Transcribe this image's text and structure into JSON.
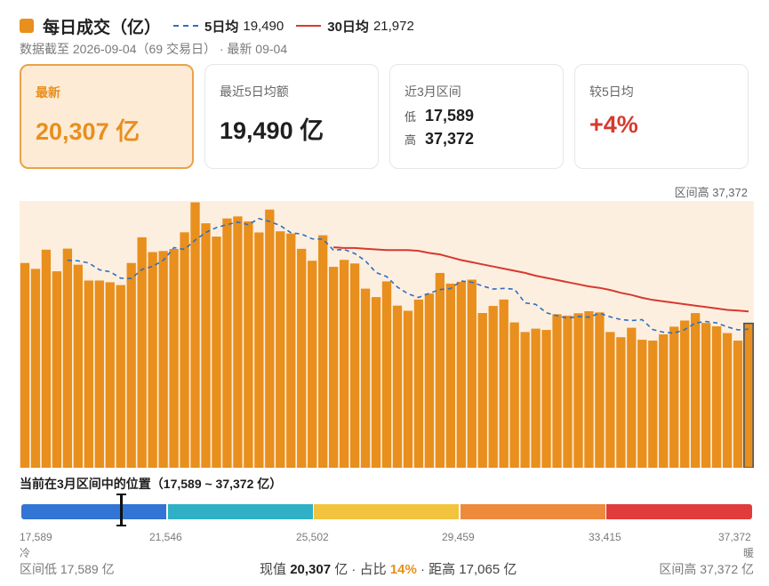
{
  "header": {
    "title": "每日成交（亿）",
    "legend_ma5_name": "5日均",
    "legend_ma5_value": "19,490",
    "legend_ma30_name": "30日均",
    "legend_ma30_value": "21,972",
    "subtitle": "数据截至 2026-09-04（69 交易日） · 最新 09-04"
  },
  "cards": {
    "latest_label": "最新",
    "latest_value": "20,307 亿",
    "avg5_label": "最近5日均额",
    "avg5_value": "19,490 亿",
    "range_label": "近3月区间",
    "range_low_label": "低",
    "range_low_value": "17,589",
    "range_high_label": "高",
    "range_high_value": "37,372",
    "vs5_label": "较5日均",
    "vs5_value": "+4%"
  },
  "chart_note": "区间高 37,372",
  "position": {
    "title": "当前在3月区间中的位置（17,589 ~ 37,372 亿）",
    "ticks": [
      "17,589",
      "21,546",
      "25,502",
      "29,459",
      "33,415",
      "37,372"
    ],
    "cold_label": "冷",
    "warm_label": "暖",
    "current_fraction": 0.137,
    "footer_left": "区间低 17,589 亿",
    "footer_right": "区间高 37,372 亿",
    "now_label": "现值",
    "now_value": "20,307",
    "now_unit": "亿 · 占比",
    "share_value": "14%",
    "distance_text": "· 距高 17,065 亿"
  },
  "colors": {
    "bar": "#e88f1d",
    "bar_latest": "#e88f1d",
    "ma5": "#2f6fc0",
    "ma30": "#d63a2f",
    "plot_bg": "#fdefe0"
  },
  "chart_data": {
    "type": "bar",
    "title": "每日成交（亿）",
    "ylim": [
      0,
      37372
    ],
    "grid": false,
    "legend": "top",
    "series": [
      {
        "name": "每日成交",
        "values": [
          28800,
          27970,
          30670,
          27630,
          30820,
          28560,
          26330,
          26330,
          26090,
          25690,
          28800,
          32410,
          30330,
          30480,
          30770,
          33110,
          37330,
          34380,
          32510,
          35060,
          35350,
          34650,
          33090,
          36310,
          33250,
          32940,
          30790,
          29110,
          32700,
          28260,
          29240,
          28730,
          25190,
          24000,
          26210,
          22800,
          22080,
          23650,
          24500,
          27400,
          25900,
          26160,
          26450,
          21760,
          22750,
          23660,
          20440,
          19090,
          19560,
          19380,
          21590,
          21400,
          21730,
          22010,
          21850,
          19090,
          18360,
          19690,
          18000,
          17880,
          18760,
          19840,
          20700,
          21750,
          20370,
          19890,
          18940,
          17880,
          20307
        ]
      },
      {
        "name": "5日均",
        "values": [
          null,
          null,
          null,
          null,
          29180,
          29110,
          28800,
          27840,
          27570,
          26670,
          26620,
          27890,
          28330,
          29150,
          30950,
          30710,
          32020,
          33090,
          33780,
          34200,
          34550,
          34180,
          35050,
          34630,
          34060,
          33050,
          32870,
          32190,
          32160,
          30600,
          30700,
          30130,
          29090,
          27450,
          26880,
          25420,
          24460,
          23950,
          24540,
          25050,
          25200,
          26270,
          26090,
          25560,
          25130,
          25230,
          25120,
          23190,
          22980,
          21800,
          21370,
          21030,
          21280,
          21180,
          21720,
          21230,
          20840,
          20700,
          20820,
          19440,
          19060,
          18940,
          19440,
          20360,
          20570,
          20360,
          19810,
          19390,
          19490
        ]
      },
      {
        "name": "30日均",
        "values": [
          null,
          null,
          null,
          null,
          null,
          null,
          null,
          null,
          null,
          null,
          null,
          null,
          null,
          null,
          null,
          null,
          null,
          null,
          null,
          null,
          null,
          null,
          null,
          null,
          null,
          null,
          null,
          null,
          null,
          31000,
          30900,
          30900,
          30800,
          30700,
          30600,
          30600,
          30600,
          30500,
          30200,
          30000,
          29600,
          29200,
          28900,
          28600,
          28300,
          28000,
          27700,
          27400,
          27000,
          26700,
          26400,
          26100,
          25800,
          25500,
          25300,
          25000,
          24600,
          24300,
          23900,
          23600,
          23400,
          23200,
          23000,
          22800,
          22600,
          22400,
          22200,
          22100,
          21972
        ]
      }
    ]
  }
}
